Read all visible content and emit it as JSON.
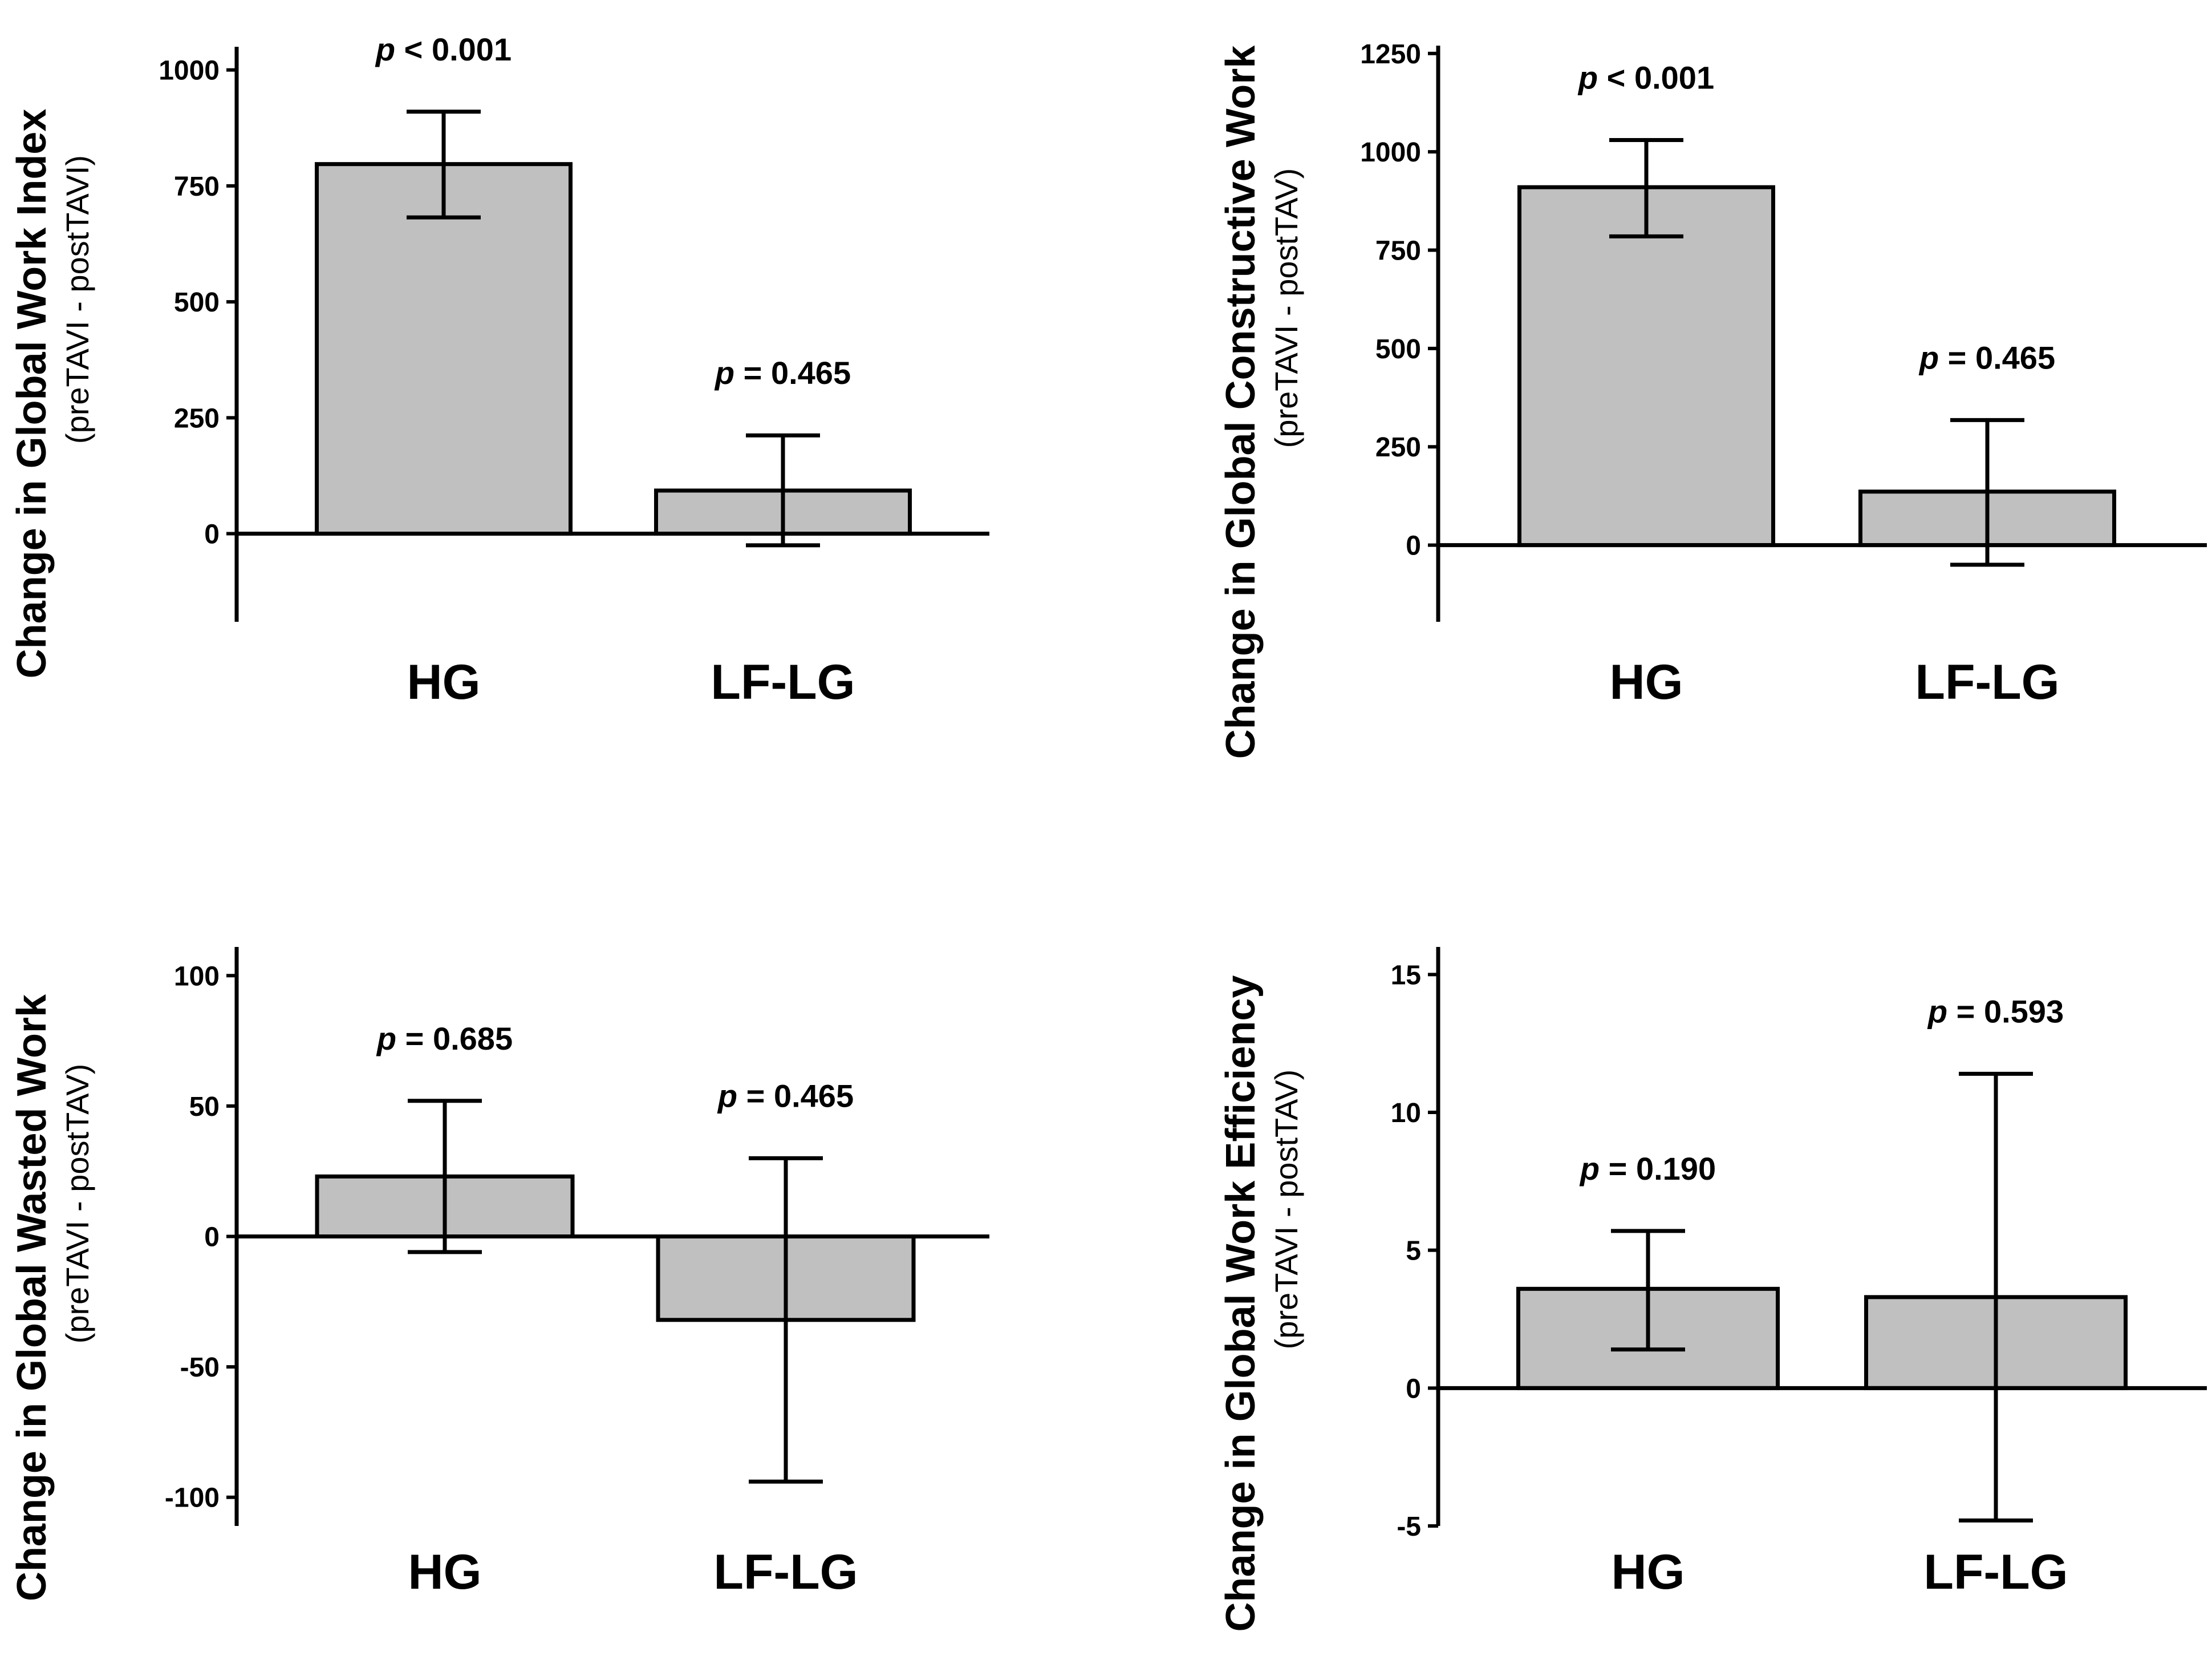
{
  "colors": {
    "bar_fill": "#c0c0c0",
    "stroke": "#000000"
  },
  "chart_data": [
    {
      "type": "bar",
      "title": "",
      "ylabel": "Change in Global Work Index",
      "ysublabel": "(preTAVI - postTAVI)",
      "categories": [
        "HG",
        "LF-LG"
      ],
      "values": [
        797,
        93
      ],
      "error_low": [
        682,
        -25
      ],
      "error_high": [
        910,
        212
      ],
      "p_values": [
        "< 0.001",
        "= 0.465"
      ],
      "ylim": [
        -190,
        1050
      ],
      "yticks": [
        0,
        250,
        500,
        750,
        1000
      ],
      "ytick_labels": [
        "0",
        "250",
        "500",
        "750",
        "1000"
      ]
    },
    {
      "type": "bar",
      "title": "",
      "ylabel": "Change in Global Constructive Work",
      "ysublabel": "(preTAVI - postTAV)",
      "categories": [
        "HG",
        "LF-LG"
      ],
      "values": [
        910,
        136
      ],
      "error_low": [
        785,
        -50
      ],
      "error_high": [
        1030,
        318
      ],
      "p_values": [
        "< 0.001",
        "= 0.465"
      ],
      "ylim": [
        -195,
        1270
      ],
      "yticks": [
        0,
        250,
        500,
        750,
        1000,
        1250
      ],
      "ytick_labels": [
        "0",
        "250",
        "500",
        "750",
        "1000",
        "1250"
      ]
    },
    {
      "type": "bar",
      "title": "",
      "ylabel": "Change in Global Wasted Work",
      "ysublabel": "(preTAVI - postTAV)",
      "categories": [
        "HG",
        "LF-LG"
      ],
      "values": [
        23,
        -32
      ],
      "error_low": [
        -6,
        -94
      ],
      "error_high": [
        52,
        30
      ],
      "p_values": [
        "= 0.685",
        "= 0.465"
      ],
      "ylim": [
        -111,
        111
      ],
      "yticks": [
        -100,
        -50,
        0,
        50,
        100
      ],
      "ytick_labels": [
        "-100",
        "-50",
        "0",
        "50",
        "100"
      ]
    },
    {
      "type": "bar",
      "title": "",
      "ylabel": "Change in Global Work Efficiency",
      "ysublabel": "(preTAVI - postTAV)",
      "categories": [
        "HG",
        "LF-LG"
      ],
      "values": [
        3.6,
        3.3
      ],
      "error_low": [
        1.4,
        -4.8
      ],
      "error_high": [
        5.7,
        11.4
      ],
      "p_values": [
        "= 0.190",
        "= 0.593"
      ],
      "ylim": [
        -5,
        16
      ],
      "yticks": [
        -5,
        0,
        5,
        10,
        15
      ],
      "ytick_labels": [
        "-5",
        "0",
        "5",
        "10",
        "15"
      ]
    }
  ]
}
